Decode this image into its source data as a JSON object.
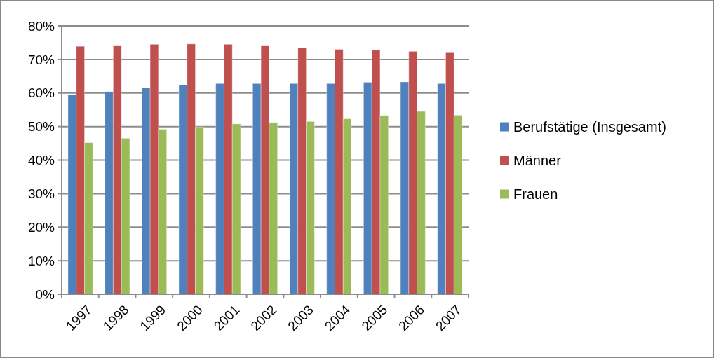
{
  "chart_data": {
    "type": "bar",
    "categories": [
      "1997",
      "1998",
      "1999",
      "2000",
      "2001",
      "2002",
      "2003",
      "2004",
      "2005",
      "2006",
      "2007"
    ],
    "series": [
      {
        "name": "Berufstätige (Insgesamt)",
        "color": "#4f81bd",
        "values": [
          59.5,
          60.4,
          61.5,
          62.4,
          62.8,
          62.8,
          62.8,
          62.8,
          63.2,
          63.3,
          62.8
        ]
      },
      {
        "name": "Männer",
        "color": "#c0504d",
        "values": [
          73.9,
          74.2,
          74.5,
          74.6,
          74.5,
          74.2,
          73.5,
          73.0,
          72.8,
          72.4,
          72.2
        ]
      },
      {
        "name": "Frauen",
        "color": "#9bbb59",
        "values": [
          45.2,
          46.5,
          49.2,
          49.9,
          50.8,
          51.2,
          51.5,
          52.3,
          53.3,
          54.5,
          53.4
        ]
      }
    ],
    "ylim": [
      0,
      80
    ],
    "yticks": [
      {
        "value": 0,
        "label": "0%"
      },
      {
        "value": 10,
        "label": "10%"
      },
      {
        "value": 20,
        "label": "20%"
      },
      {
        "value": 30,
        "label": "30%"
      },
      {
        "value": 40,
        "label": "40%"
      },
      {
        "value": 50,
        "label": "50%"
      },
      {
        "value": 60,
        "label": "60%"
      },
      {
        "value": 70,
        "label": "70%"
      },
      {
        "value": 80,
        "label": "80%"
      }
    ],
    "grid": "y",
    "legend": "right"
  }
}
